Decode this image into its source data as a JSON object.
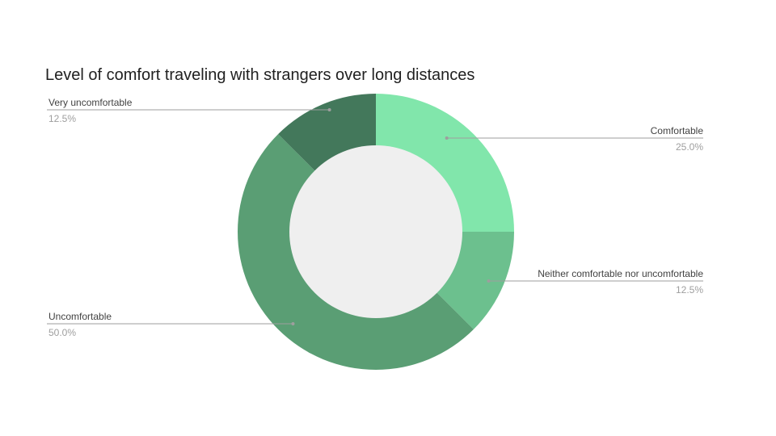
{
  "chart_data": {
    "type": "pie",
    "donut": true,
    "title": "Level of comfort traveling with strangers over long distances",
    "legend": "labels",
    "slices": [
      {
        "label": "Comfortable",
        "value": 25.0,
        "display": "25.0%",
        "color": "#81e6ab"
      },
      {
        "label": "Neither comfortable nor uncomfortable",
        "value": 12.5,
        "display": "12.5%",
        "color": "#6cc08e"
      },
      {
        "label": "Uncomfortable",
        "value": 50.0,
        "display": "50.0%",
        "color": "#5a9e74"
      },
      {
        "label": "Very uncomfortable",
        "value": 12.5,
        "display": "12.5%",
        "color": "#43785b"
      }
    ],
    "hole_color": "#efefef"
  }
}
